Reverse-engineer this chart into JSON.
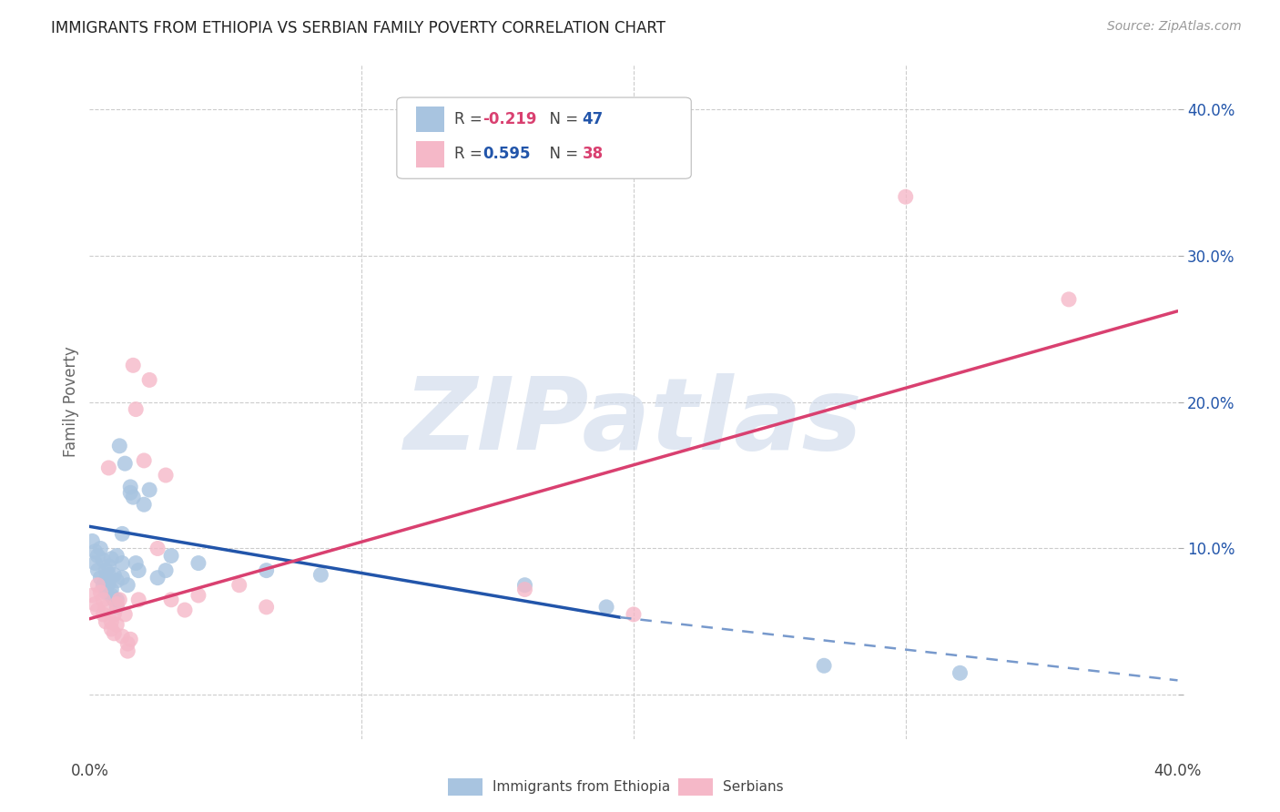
{
  "title": "IMMIGRANTS FROM ETHIOPIA VS SERBIAN FAMILY POVERTY CORRELATION CHART",
  "source": "Source: ZipAtlas.com",
  "ylabel": "Family Poverty",
  "watermark": "ZIPatlas",
  "xlim": [
    0.0,
    0.4
  ],
  "ylim": [
    -0.03,
    0.43
  ],
  "yticks": [
    0.0,
    0.1,
    0.2,
    0.3,
    0.4
  ],
  "ytick_labels": [
    "",
    "10.0%",
    "20.0%",
    "30.0%",
    "40.0%"
  ],
  "legend_blue_r": "-0.219",
  "legend_blue_n": "47",
  "legend_pink_r": "0.595",
  "legend_pink_n": "38",
  "legend_label_blue": "Immigrants from Ethiopia",
  "legend_label_pink": "Serbians",
  "blue_color": "#a8c4e0",
  "pink_color": "#f5b8c8",
  "line_blue_color": "#2255aa",
  "line_pink_color": "#d94070",
  "line_blue_dash_color": "#7799cc",
  "background_color": "#ffffff",
  "grid_color": "#cccccc",
  "blue_scatter": [
    [
      0.001,
      0.105
    ],
    [
      0.002,
      0.098
    ],
    [
      0.002,
      0.09
    ],
    [
      0.003,
      0.095
    ],
    [
      0.003,
      0.085
    ],
    [
      0.004,
      0.1
    ],
    [
      0.004,
      0.08
    ],
    [
      0.005,
      0.092
    ],
    [
      0.005,
      0.075
    ],
    [
      0.006,
      0.085
    ],
    [
      0.006,
      0.078
    ],
    [
      0.006,
      0.07
    ],
    [
      0.007,
      0.088
    ],
    [
      0.007,
      0.082
    ],
    [
      0.007,
      0.076
    ],
    [
      0.008,
      0.093
    ],
    [
      0.008,
      0.072
    ],
    [
      0.008,
      0.068
    ],
    [
      0.009,
      0.082
    ],
    [
      0.009,
      0.065
    ],
    [
      0.01,
      0.095
    ],
    [
      0.01,
      0.078
    ],
    [
      0.01,
      0.065
    ],
    [
      0.01,
      0.06
    ],
    [
      0.011,
      0.17
    ],
    [
      0.012,
      0.11
    ],
    [
      0.012,
      0.09
    ],
    [
      0.012,
      0.08
    ],
    [
      0.013,
      0.158
    ],
    [
      0.014,
      0.075
    ],
    [
      0.015,
      0.142
    ],
    [
      0.015,
      0.138
    ],
    [
      0.016,
      0.135
    ],
    [
      0.017,
      0.09
    ],
    [
      0.018,
      0.085
    ],
    [
      0.02,
      0.13
    ],
    [
      0.022,
      0.14
    ],
    [
      0.025,
      0.08
    ],
    [
      0.028,
      0.085
    ],
    [
      0.03,
      0.095
    ],
    [
      0.04,
      0.09
    ],
    [
      0.065,
      0.085
    ],
    [
      0.085,
      0.082
    ],
    [
      0.16,
      0.075
    ],
    [
      0.19,
      0.06
    ],
    [
      0.27,
      0.02
    ],
    [
      0.32,
      0.015
    ]
  ],
  "pink_scatter": [
    [
      0.001,
      0.068
    ],
    [
      0.002,
      0.062
    ],
    [
      0.003,
      0.075
    ],
    [
      0.003,
      0.058
    ],
    [
      0.004,
      0.07
    ],
    [
      0.005,
      0.065
    ],
    [
      0.005,
      0.055
    ],
    [
      0.006,
      0.06
    ],
    [
      0.006,
      0.05
    ],
    [
      0.007,
      0.155
    ],
    [
      0.008,
      0.05
    ],
    [
      0.008,
      0.045
    ],
    [
      0.009,
      0.055
    ],
    [
      0.009,
      0.042
    ],
    [
      0.01,
      0.062
    ],
    [
      0.01,
      0.048
    ],
    [
      0.011,
      0.065
    ],
    [
      0.012,
      0.04
    ],
    [
      0.013,
      0.055
    ],
    [
      0.014,
      0.035
    ],
    [
      0.014,
      0.03
    ],
    [
      0.015,
      0.038
    ],
    [
      0.016,
      0.225
    ],
    [
      0.017,
      0.195
    ],
    [
      0.018,
      0.065
    ],
    [
      0.02,
      0.16
    ],
    [
      0.022,
      0.215
    ],
    [
      0.025,
      0.1
    ],
    [
      0.028,
      0.15
    ],
    [
      0.03,
      0.065
    ],
    [
      0.035,
      0.058
    ],
    [
      0.04,
      0.068
    ],
    [
      0.055,
      0.075
    ],
    [
      0.065,
      0.06
    ],
    [
      0.16,
      0.072
    ],
    [
      0.2,
      0.055
    ],
    [
      0.3,
      0.34
    ],
    [
      0.36,
      0.27
    ]
  ],
  "blue_line_solid": {
    "x_start": 0.0,
    "x_end": 0.195,
    "y_start": 0.115,
    "y_end": 0.053
  },
  "blue_line_dash": {
    "x_start": 0.195,
    "x_end": 0.4,
    "y_start": 0.053,
    "y_end": 0.01
  },
  "pink_line": {
    "x_start": 0.0,
    "x_end": 0.4,
    "y_start": 0.052,
    "y_end": 0.262
  }
}
